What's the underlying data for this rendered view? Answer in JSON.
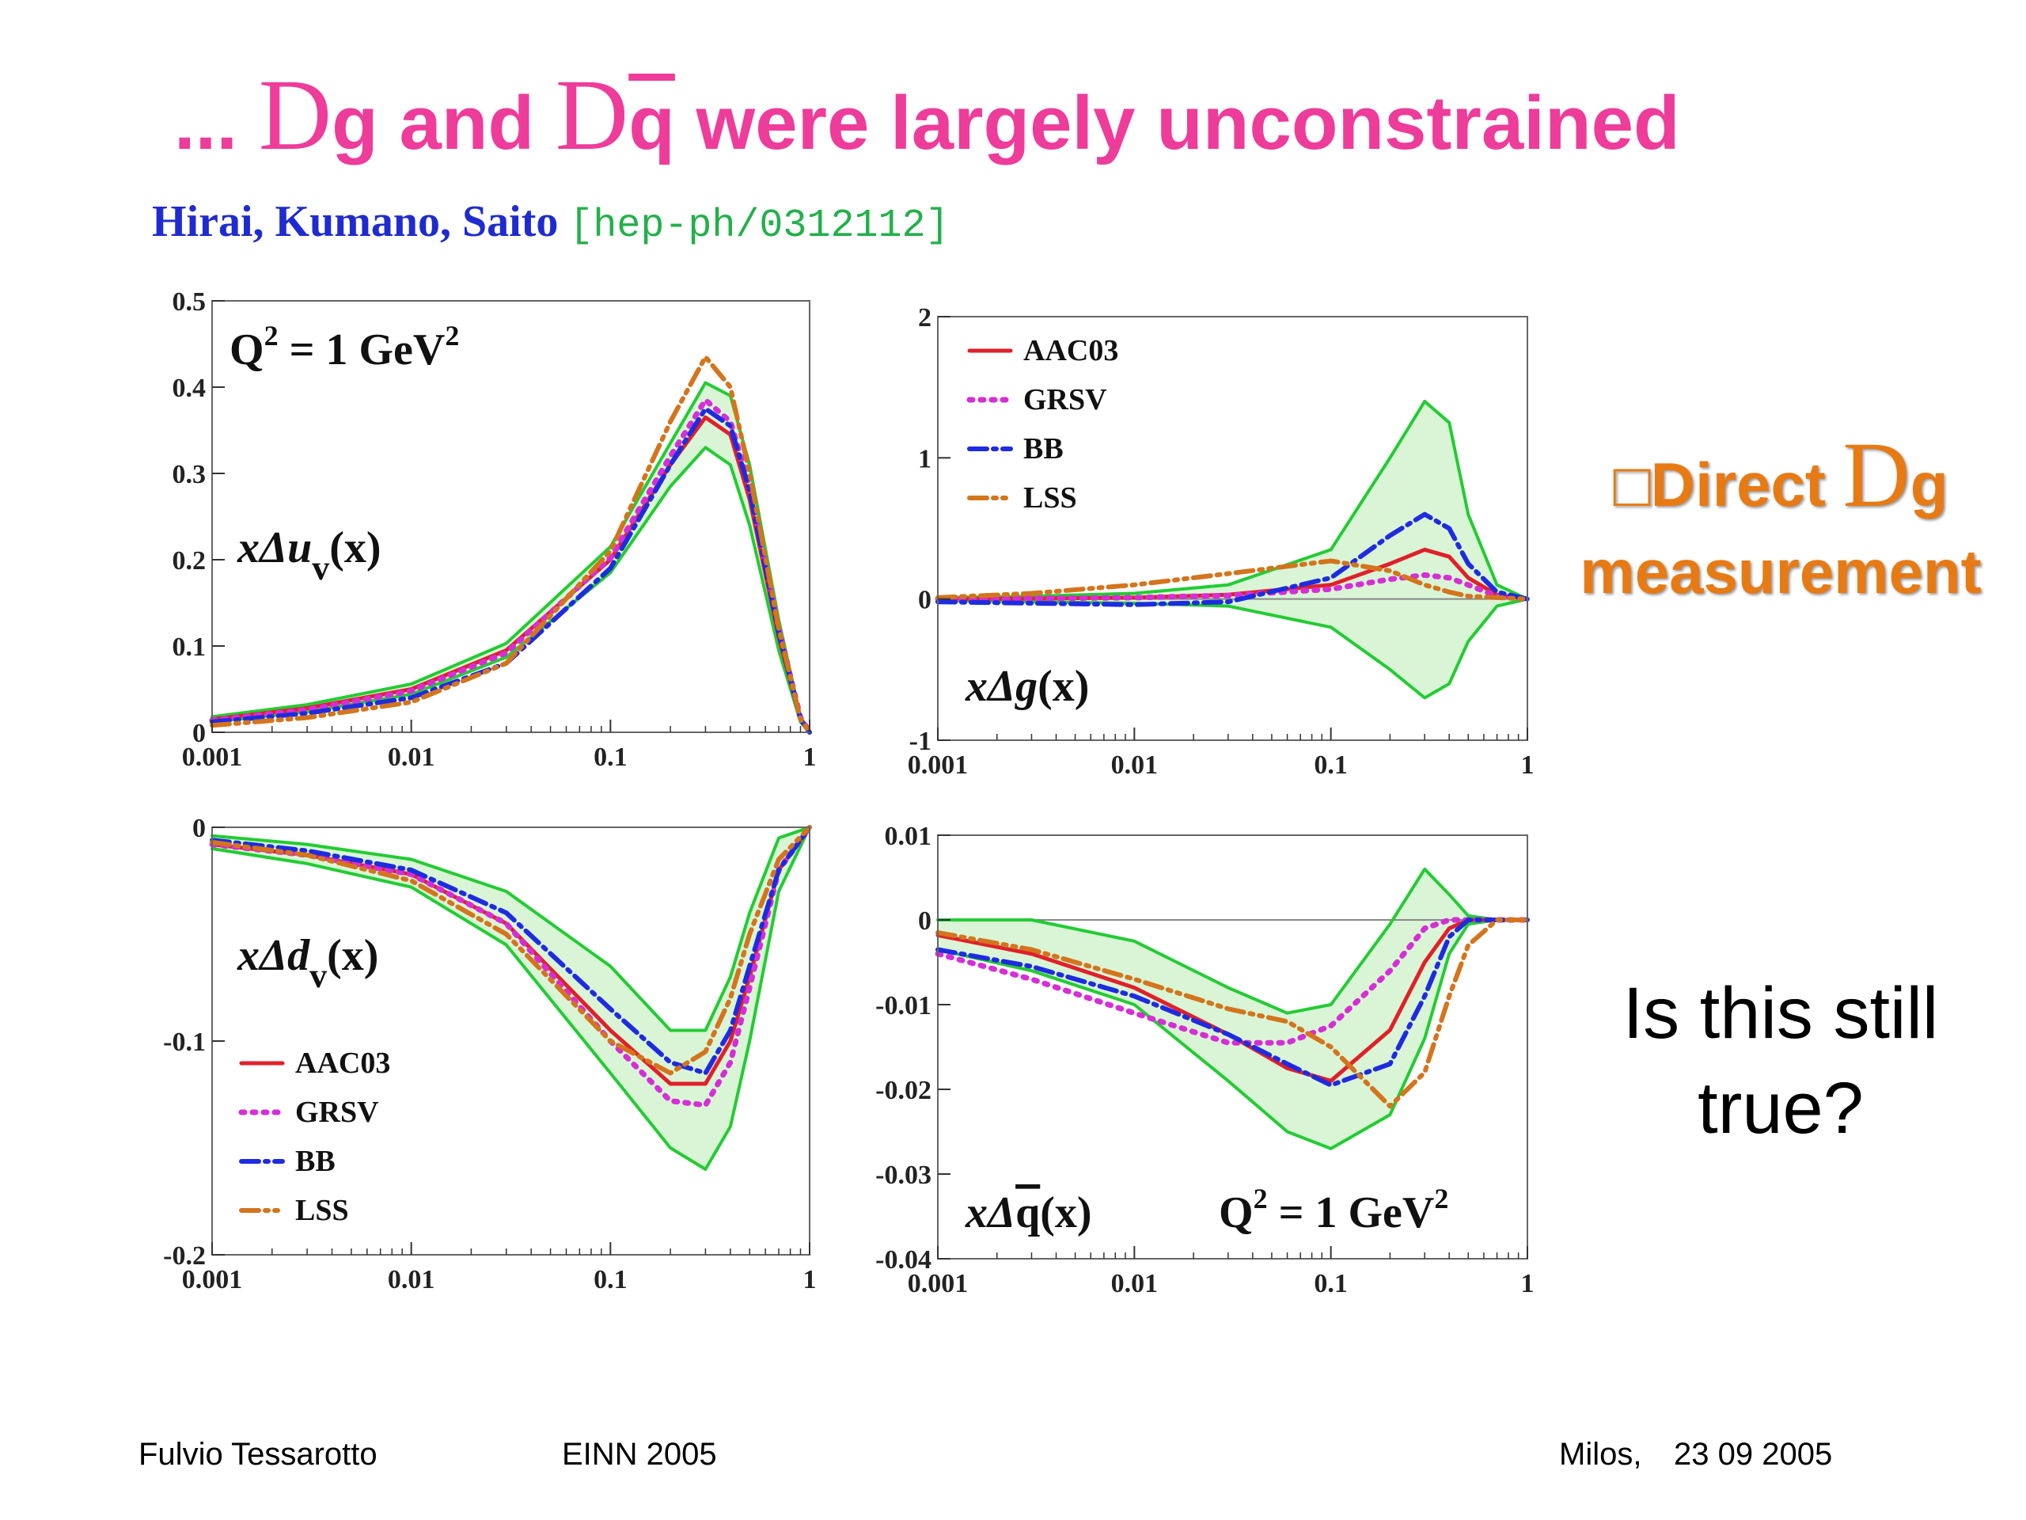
{
  "slide": {
    "title": {
      "prefix": "... ",
      "sym1": "D",
      "g": "g",
      "and": " and ",
      "sym2": "D",
      "q": "q",
      "rest": " were largely unconstrained"
    },
    "citation": {
      "authors": "Hirai, Kumano, Saito",
      "ref": "[hep-ph/0312112]"
    },
    "side_note_1": {
      "box": "□",
      "word": "Direct ",
      "sym": "D",
      "g": "g",
      "line2": "measurement",
      "color": "#e87a14"
    },
    "side_note_2": {
      "line1": "Is this still",
      "line2": "true?"
    },
    "footer": {
      "author": "Fulvio Tessarotto",
      "event": "EINN 2005",
      "location": "Milos,",
      "date": "23 09 2005"
    }
  },
  "colors": {
    "title": "#ee3c9a",
    "authors": "#1f2bd0",
    "ref": "#22b04a",
    "AAC03": "#e0202a",
    "GRSV": "#d62ed6",
    "BB": "#1f2be0",
    "LSS": "#d4741c",
    "band": "#22cc33",
    "band_fill": "#d9f5d6"
  },
  "chart_data": [
    {
      "type": "line",
      "panel": "xΔuv(x)",
      "label_main": "xΔu",
      "label_sub": "v",
      "label_tail": "(x)",
      "annotation": {
        "q": "Q",
        "sup1": "2",
        "mid": " = 1 GeV",
        "sup2": "2"
      },
      "xscale": "log",
      "xlim": [
        0.001,
        1
      ],
      "ylim": [
        0,
        0.5
      ],
      "xticks": [
        "0.001",
        "0.01",
        "0.1",
        "1"
      ],
      "yticks": [
        {
          "v": 0,
          "t": "0"
        },
        {
          "v": 0.1,
          "t": "0.1"
        },
        {
          "v": 0.2,
          "t": "0.2"
        },
        {
          "v": 0.3,
          "t": "0.3"
        },
        {
          "v": 0.4,
          "t": "0.4"
        },
        {
          "v": 0.5,
          "t": "0.5"
        }
      ],
      "legend": [],
      "x": [
        0.001,
        0.003,
        0.01,
        0.03,
        0.1,
        0.2,
        0.3,
        0.4,
        0.5,
        0.7,
        0.9,
        1.0
      ],
      "series": [
        {
          "name": "AAC03",
          "style": "solid",
          "values": [
            0.015,
            0.028,
            0.05,
            0.095,
            0.2,
            0.31,
            0.365,
            0.345,
            0.27,
            0.11,
            0.015,
            0
          ]
        },
        {
          "name": "GRSV",
          "style": "dot",
          "values": [
            0.014,
            0.026,
            0.048,
            0.092,
            0.202,
            0.32,
            0.385,
            0.36,
            0.285,
            0.12,
            0.017,
            0
          ]
        },
        {
          "name": "BB",
          "style": "dashdot",
          "values": [
            0.012,
            0.022,
            0.04,
            0.08,
            0.19,
            0.31,
            0.375,
            0.355,
            0.28,
            0.115,
            0.015,
            0
          ]
        },
        {
          "name": "LSS",
          "style": "dashdotdot",
          "values": [
            0.008,
            0.017,
            0.035,
            0.08,
            0.21,
            0.36,
            0.435,
            0.4,
            0.3,
            0.12,
            0.015,
            0
          ]
        }
      ],
      "band": {
        "upper": [
          0.018,
          0.032,
          0.056,
          0.103,
          0.215,
          0.335,
          0.405,
          0.39,
          0.31,
          0.13,
          0.018,
          0
        ],
        "lower": [
          0.012,
          0.024,
          0.044,
          0.087,
          0.185,
          0.285,
          0.33,
          0.31,
          0.24,
          0.095,
          0.012,
          0
        ]
      }
    },
    {
      "type": "line",
      "panel": "xΔg(x)",
      "label_main": "xΔg",
      "label_sub": "",
      "label_tail": "(x)",
      "xscale": "log",
      "xlim": [
        0.001,
        1
      ],
      "ylim": [
        -1,
        2
      ],
      "xticks": [
        "0.001",
        "0.01",
        "0.1",
        "1"
      ],
      "yticks": [
        {
          "v": -1,
          "t": "-1"
        },
        {
          "v": 0,
          "t": "0"
        },
        {
          "v": 1,
          "t": "1"
        },
        {
          "v": 2,
          "t": "2"
        }
      ],
      "legend": [
        "AAC03",
        "GRSV",
        "BB",
        "LSS"
      ],
      "x": [
        0.001,
        0.003,
        0.01,
        0.03,
        0.1,
        0.2,
        0.3,
        0.4,
        0.5,
        0.7,
        1.0
      ],
      "series": [
        {
          "name": "AAC03",
          "style": "solid",
          "values": [
            0,
            0.003,
            0.01,
            0.03,
            0.1,
            0.25,
            0.35,
            0.3,
            0.15,
            0.03,
            0
          ]
        },
        {
          "name": "GRSV",
          "style": "dot",
          "values": [
            0,
            0.004,
            0.01,
            0.025,
            0.07,
            0.14,
            0.17,
            0.15,
            0.1,
            0.02,
            0
          ]
        },
        {
          "name": "BB",
          "style": "dashdot",
          "values": [
            -0.02,
            -0.03,
            -0.04,
            -0.02,
            0.15,
            0.45,
            0.6,
            0.5,
            0.25,
            0.05,
            0
          ]
        },
        {
          "name": "LSS",
          "style": "dashdotdot",
          "values": [
            0.01,
            0.04,
            0.1,
            0.18,
            0.27,
            0.2,
            0.1,
            0.05,
            0.02,
            0.01,
            0
          ]
        }
      ],
      "band": {
        "upper": [
          0.01,
          0.02,
          0.04,
          0.1,
          0.35,
          1.0,
          1.4,
          1.25,
          0.6,
          0.1,
          0
        ],
        "lower": [
          -0.01,
          -0.02,
          -0.03,
          -0.05,
          -0.2,
          -0.5,
          -0.7,
          -0.6,
          -0.3,
          -0.05,
          0
        ]
      }
    },
    {
      "type": "line",
      "panel": "xΔdv(x)",
      "label_main": "xΔd",
      "label_sub": "v",
      "label_tail": "(x)",
      "xscale": "log",
      "xlim": [
        0.001,
        1
      ],
      "ylim": [
        -0.2,
        0
      ],
      "xticks": [
        "0.001",
        "0.01",
        "0.1",
        "1"
      ],
      "yticks": [
        {
          "v": -0.2,
          "t": "-0.2"
        },
        {
          "v": -0.1,
          "t": "-0.1"
        },
        {
          "v": 0,
          "t": "0"
        }
      ],
      "legend": [
        "AAC03",
        "GRSV",
        "BB",
        "LSS"
      ],
      "x": [
        0.001,
        0.003,
        0.01,
        0.03,
        0.1,
        0.2,
        0.3,
        0.4,
        0.5,
        0.7,
        1.0
      ],
      "series": [
        {
          "name": "AAC03",
          "style": "solid",
          "values": [
            -0.008,
            -0.013,
            -0.022,
            -0.045,
            -0.095,
            -0.12,
            -0.12,
            -0.1,
            -0.07,
            -0.02,
            0
          ]
        },
        {
          "name": "GRSV",
          "style": "dot",
          "values": [
            -0.008,
            -0.013,
            -0.022,
            -0.045,
            -0.1,
            -0.128,
            -0.13,
            -0.11,
            -0.075,
            -0.02,
            0
          ]
        },
        {
          "name": "BB",
          "style": "dashdot",
          "values": [
            -0.006,
            -0.011,
            -0.02,
            -0.04,
            -0.085,
            -0.11,
            -0.115,
            -0.095,
            -0.065,
            -0.02,
            0
          ]
        },
        {
          "name": "LSS",
          "style": "dashdotdot",
          "values": [
            -0.007,
            -0.013,
            -0.025,
            -0.05,
            -0.1,
            -0.115,
            -0.105,
            -0.08,
            -0.05,
            -0.015,
            0
          ]
        }
      ],
      "band": {
        "upper": [
          -0.004,
          -0.008,
          -0.015,
          -0.03,
          -0.065,
          -0.095,
          -0.095,
          -0.07,
          -0.04,
          -0.005,
          0
        ],
        "lower": [
          -0.01,
          -0.017,
          -0.028,
          -0.055,
          -0.115,
          -0.15,
          -0.16,
          -0.14,
          -0.1,
          -0.03,
          0
        ]
      }
    },
    {
      "type": "line",
      "panel": "xΔq̅(x)",
      "label_main": "xΔ",
      "label_over": "q",
      "label_sub": "",
      "label_tail": "(x)",
      "annotation": {
        "q": "Q",
        "sup1": "2",
        "mid": " = 1 GeV",
        "sup2": "2"
      },
      "xscale": "log",
      "xlim": [
        0.001,
        1
      ],
      "ylim": [
        -0.04,
        0.01
      ],
      "xticks": [
        "0.001",
        "0.01",
        "0.1",
        "1"
      ],
      "yticks": [
        {
          "v": -0.04,
          "t": "-0.04"
        },
        {
          "v": -0.03,
          "t": "-0.03"
        },
        {
          "v": -0.02,
          "t": "-0.02"
        },
        {
          "v": -0.01,
          "t": "-0.01"
        },
        {
          "v": 0,
          "t": "0"
        },
        {
          "v": 0.01,
          "t": "0.01"
        }
      ],
      "legend": [],
      "x": [
        0.001,
        0.003,
        0.01,
        0.03,
        0.06,
        0.1,
        0.2,
        0.3,
        0.4,
        0.5,
        0.7,
        1.0
      ],
      "series": [
        {
          "name": "AAC03",
          "style": "solid",
          "values": [
            -0.0018,
            -0.004,
            -0.008,
            -0.0135,
            -0.0175,
            -0.019,
            -0.013,
            -0.005,
            -0.001,
            0,
            0,
            0
          ]
        },
        {
          "name": "GRSV",
          "style": "dot",
          "values": [
            -0.004,
            -0.007,
            -0.011,
            -0.0145,
            -0.0145,
            -0.0125,
            -0.006,
            -0.001,
            0,
            0,
            0,
            0
          ]
        },
        {
          "name": "BB",
          "style": "dashdot",
          "values": [
            -0.0035,
            -0.0055,
            -0.009,
            -0.0135,
            -0.017,
            -0.0195,
            -0.017,
            -0.009,
            -0.002,
            0,
            0,
            0
          ]
        },
        {
          "name": "LSS",
          "style": "dashdotdot",
          "values": [
            -0.0015,
            -0.0035,
            -0.007,
            -0.0105,
            -0.012,
            -0.015,
            -0.022,
            -0.018,
            -0.009,
            -0.003,
            0,
            0
          ]
        }
      ],
      "band": {
        "upper": [
          0,
          0,
          -0.0025,
          -0.008,
          -0.011,
          -0.01,
          -0.0005,
          0.006,
          0.003,
          0.0005,
          0,
          0
        ],
        "lower": [
          -0.0035,
          -0.006,
          -0.01,
          -0.019,
          -0.025,
          -0.027,
          -0.023,
          -0.014,
          -0.004,
          -0.0005,
          0,
          0
        ]
      }
    }
  ]
}
